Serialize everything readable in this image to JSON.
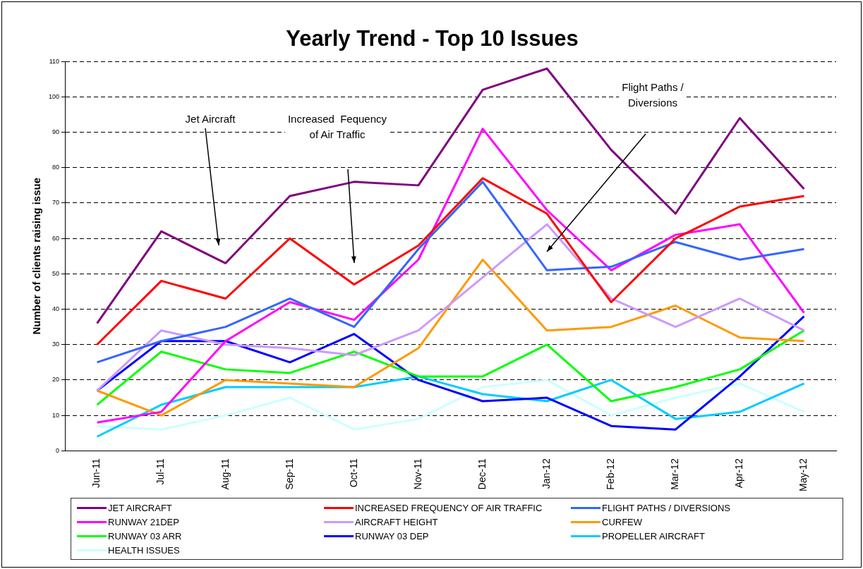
{
  "chart_data": {
    "type": "line",
    "title": "Yearly Trend - Top 10 Issues",
    "ylabel": "Number of clients raising issue",
    "categories": [
      "Jun-11",
      "Jul-11",
      "Aug-11",
      "Sep-11",
      "Oct-11",
      "Nov-11",
      "Dec-11",
      "Jan-12",
      "Feb-12",
      "Mar-12",
      "Apr-12",
      "May-12"
    ],
    "series": [
      {
        "name": "JET AIRCRAFT",
        "color": "#7f007f",
        "values": [
          36,
          62,
          53,
          72,
          76,
          75,
          102,
          108,
          85,
          67,
          94,
          74
        ]
      },
      {
        "name": "INCREASED FREQUENCY OF AIR TRAFFIC",
        "color": "#ff0000",
        "values": [
          30,
          48,
          43,
          60,
          47,
          58,
          77,
          67,
          42,
          60,
          69,
          72
        ]
      },
      {
        "name": "FLIGHT PATHS / DIVERSIONS",
        "color": "#3366ff",
        "values": [
          25,
          31,
          35,
          43,
          35,
          57,
          76,
          51,
          52,
          59,
          54,
          57
        ]
      },
      {
        "name": "RUNWAY 21DEP",
        "color": "#ff00ff",
        "values": [
          8,
          11,
          31,
          42,
          37,
          54,
          91,
          68,
          51,
          61,
          64,
          39
        ]
      },
      {
        "name": "AIRCRAFT HEIGHT",
        "color": "#cc99ff",
        "values": [
          17,
          34,
          30,
          29,
          27,
          34,
          49,
          64,
          43,
          35,
          43,
          34
        ]
      },
      {
        "name": "CURFEW",
        "color": "#ff9900",
        "values": [
          17,
          10,
          20,
          19,
          18,
          29,
          54,
          34,
          35,
          41,
          32,
          31
        ]
      },
      {
        "name": "RUNWAY 03 ARR",
        "color": "#00ff00",
        "values": [
          13,
          28,
          23,
          22,
          28,
          21,
          21,
          30,
          14,
          18,
          23,
          34
        ]
      },
      {
        "name": "RUNWAY 03 DEP",
        "color": "#0000ff",
        "values": [
          17,
          31,
          31,
          25,
          33,
          20,
          14,
          15,
          7,
          6,
          21,
          38
        ]
      },
      {
        "name": "PROPELLER AIRCRAFT",
        "color": "#00ccff",
        "values": [
          4,
          13,
          18,
          18,
          18,
          21,
          16,
          14,
          20,
          9,
          11,
          19
        ]
      },
      {
        "name": "HEALTH ISSUES",
        "color": "#ccffff",
        "values": [
          7,
          6,
          10,
          15,
          6,
          9,
          18,
          20,
          10,
          15,
          19,
          11
        ]
      }
    ],
    "ylim": [
      0,
      110
    ],
    "yticks": [
      0,
      10,
      20,
      30,
      40,
      50,
      60,
      70,
      80,
      90,
      100,
      110
    ],
    "grid": "y",
    "legend": "bottom",
    "marker": "none",
    "line_style": "solid",
    "annotations": [
      "Jet Aircraft",
      "Increased  Fequency\nof Air Traffic",
      "Flight Paths /\nDiversions"
    ]
  }
}
